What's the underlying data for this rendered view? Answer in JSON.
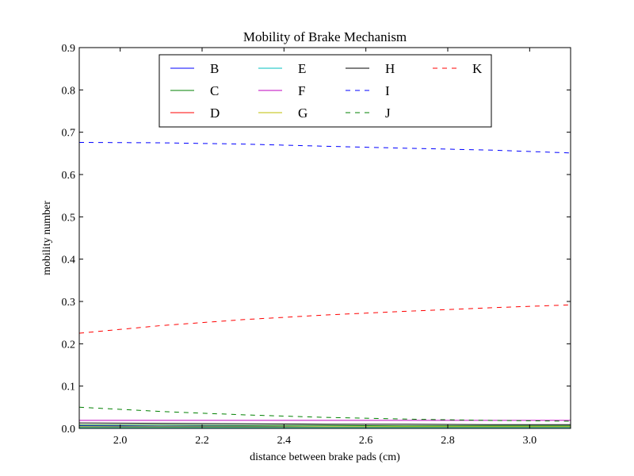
{
  "chart_data": {
    "type": "line",
    "title": "Mobility of Brake Mechanism",
    "xlabel": "distance between brake pads (cm)",
    "ylabel": "mobility number",
    "xlim": [
      1.9,
      3.1
    ],
    "ylim": [
      0.0,
      0.9
    ],
    "xticks": [
      2.0,
      2.2,
      2.4,
      2.6,
      2.8,
      3.0
    ],
    "xtick_labels": [
      "2.0",
      "2.2",
      "2.4",
      "2.6",
      "2.8",
      "3.0"
    ],
    "yticks": [
      0.0,
      0.1,
      0.2,
      0.3,
      0.4,
      0.5,
      0.6,
      0.7,
      0.8,
      0.9
    ],
    "ytick_labels": [
      "0.0",
      "0.1",
      "0.2",
      "0.3",
      "0.4",
      "0.5",
      "0.6",
      "0.7",
      "0.8",
      "0.9"
    ],
    "grid": false,
    "legend": {
      "placement": "top-center",
      "columns": 4
    },
    "x": [
      1.9,
      2.1,
      2.3,
      2.5,
      2.7,
      2.9,
      3.1
    ],
    "series": [
      {
        "name": "B",
        "color": "#0000ff",
        "dash": "solid",
        "values": [
          0.006,
          0.005,
          0.005,
          0.004,
          0.004,
          0.004,
          0.004
        ]
      },
      {
        "name": "C",
        "color": "#008000",
        "dash": "solid",
        "values": [
          0.008,
          0.008,
          0.007,
          0.007,
          0.006,
          0.006,
          0.006
        ]
      },
      {
        "name": "D",
        "color": "#ff0000",
        "dash": "solid",
        "values": [
          0.003,
          0.003,
          0.003,
          0.003,
          0.003,
          0.003,
          0.003
        ]
      },
      {
        "name": "E",
        "color": "#00bfbf",
        "dash": "solid",
        "values": [
          0.002,
          0.002,
          0.002,
          0.002,
          0.002,
          0.002,
          0.002
        ]
      },
      {
        "name": "F",
        "color": "#bf00bf",
        "dash": "solid",
        "values": [
          0.019,
          0.019,
          0.019,
          0.019,
          0.019,
          0.019,
          0.019
        ]
      },
      {
        "name": "G",
        "color": "#bfbf00",
        "dash": "solid",
        "values": [
          0.004,
          0.004,
          0.004,
          0.004,
          0.004,
          0.004,
          0.004
        ]
      },
      {
        "name": "H",
        "color": "#000000",
        "dash": "solid",
        "values": [
          0.013,
          0.012,
          0.011,
          0.01,
          0.01,
          0.009,
          0.009
        ]
      },
      {
        "name": "I",
        "color": "#0000ff",
        "dash": "dashed",
        "values": [
          0.676,
          0.675,
          0.672,
          0.667,
          0.662,
          0.658,
          0.651
        ]
      },
      {
        "name": "J",
        "color": "#008000",
        "dash": "dashed",
        "values": [
          0.05,
          0.04,
          0.032,
          0.026,
          0.022,
          0.019,
          0.017
        ]
      },
      {
        "name": "K",
        "color": "#ff0000",
        "dash": "dashed",
        "values": [
          0.225,
          0.243,
          0.257,
          0.268,
          0.277,
          0.285,
          0.292
        ]
      }
    ]
  }
}
